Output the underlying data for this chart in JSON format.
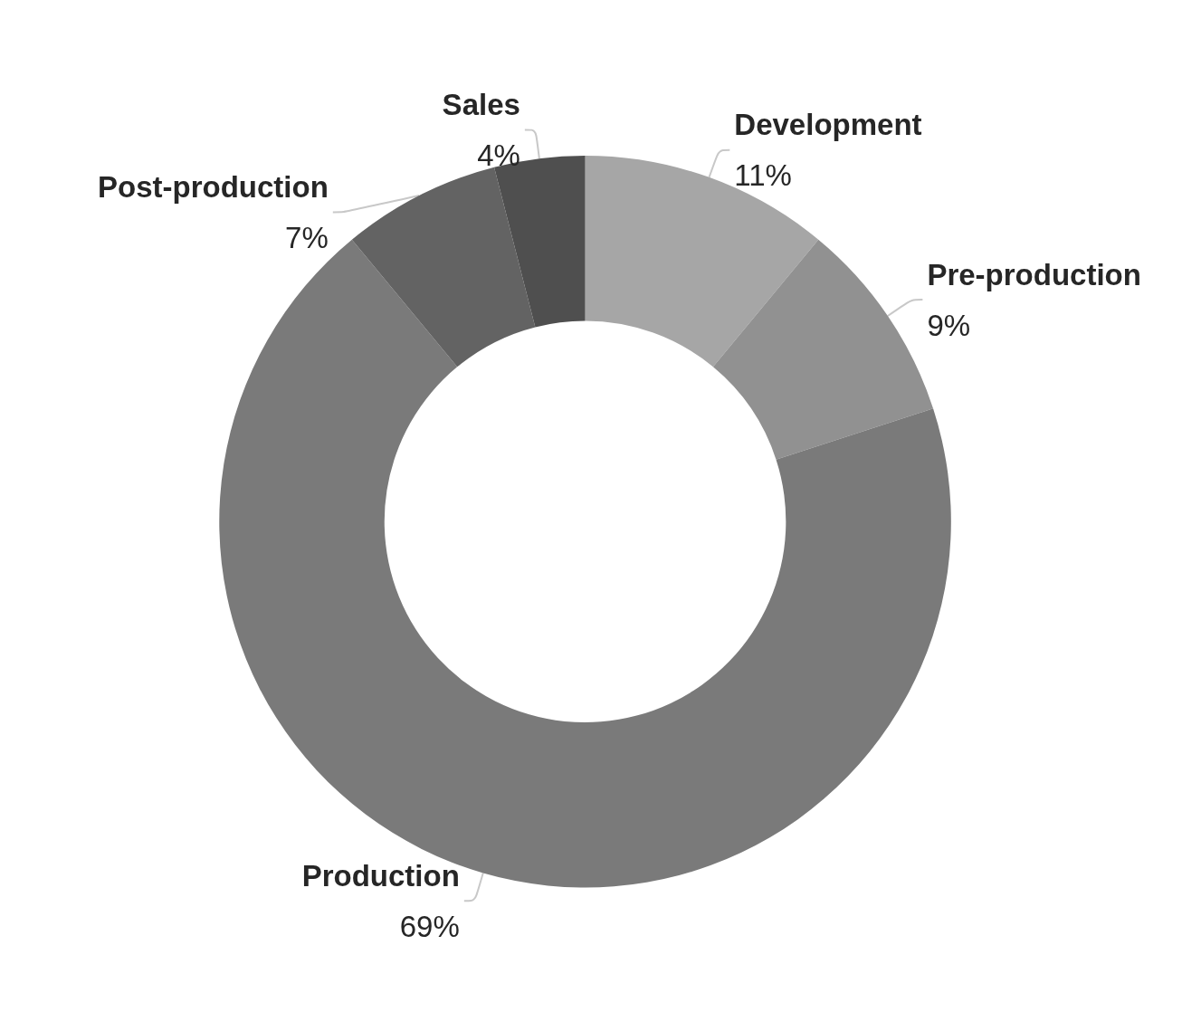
{
  "chart_data": {
    "type": "donut",
    "categories": [
      "Development",
      "Pre-production",
      "Production",
      "Post-production",
      "Sales"
    ],
    "values": [
      11,
      9,
      69,
      7,
      4
    ],
    "colors": [
      "#a6a6a6",
      "#919191",
      "#7a7a7a",
      "#636363",
      "#4f4f4f"
    ],
    "value_labels": [
      "11%",
      "9%",
      "69%",
      "7%",
      "4%"
    ],
    "legend": false
  }
}
